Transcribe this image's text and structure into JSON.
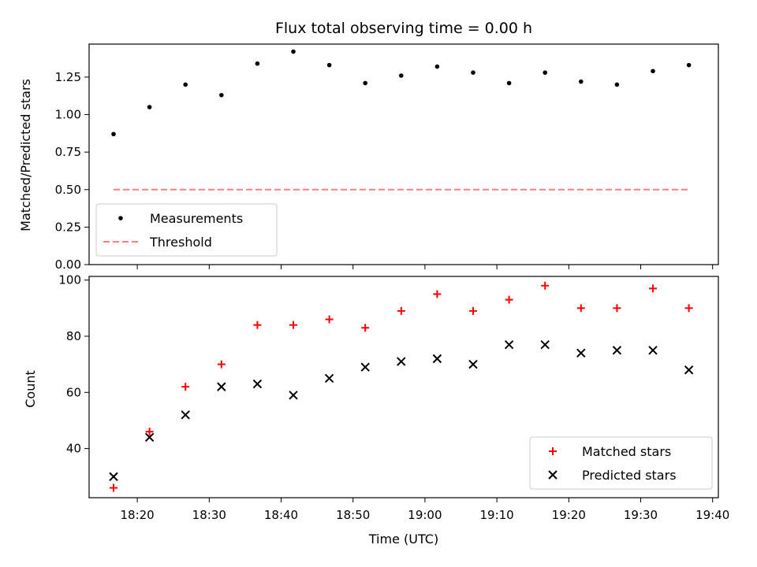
{
  "chart_data": [
    {
      "type": "scatter",
      "title": "Flux total observing time = 0.00 h",
      "xlabel": "",
      "ylabel": "Matched/Predicted stars",
      "xlim": [
        1093.3,
        1180.8
      ],
      "ylim": [
        0.0,
        1.47
      ],
      "yticks": [
        0.0,
        0.25,
        0.5,
        0.75,
        1.0,
        1.25
      ],
      "ytick_labels": [
        "0.00",
        "0.25",
        "0.50",
        "0.75",
        "1.00",
        "1.25"
      ],
      "x": [
        1096.7,
        1101.7,
        1106.7,
        1111.7,
        1116.7,
        1121.7,
        1126.7,
        1131.7,
        1136.7,
        1141.7,
        1146.7,
        1151.7,
        1156.7,
        1161.7,
        1166.7,
        1171.7,
        1176.7
      ],
      "series": [
        {
          "name": "Measurements",
          "marker": "dot",
          "color": "#000000",
          "values": [
            0.87,
            1.05,
            1.2,
            1.13,
            1.34,
            1.42,
            1.33,
            1.21,
            1.26,
            1.32,
            1.28,
            1.21,
            1.28,
            1.22,
            1.2,
            1.29,
            1.33
          ]
        },
        {
          "name": "Threshold",
          "marker": "dashed-line",
          "color": "#ff7f7f",
          "x_range": [
            1096.7,
            1176.7
          ],
          "value": 0.5
        }
      ],
      "legend": "lower-left"
    },
    {
      "type": "scatter",
      "title": "",
      "xlabel": "Time (UTC)",
      "ylabel": "Count",
      "xlim": [
        1093.3,
        1180.8
      ],
      "ylim": [
        22.5,
        101.3
      ],
      "yticks": [
        40,
        60,
        80,
        100
      ],
      "ytick_labels": [
        "40",
        "60",
        "80",
        "100"
      ],
      "xticks": [
        1100,
        1110,
        1120,
        1130,
        1140,
        1150,
        1160,
        1170,
        1180
      ],
      "xtick_labels": [
        "18:20",
        "18:30",
        "18:40",
        "18:50",
        "19:00",
        "19:10",
        "19:20",
        "19:30",
        "19:40"
      ],
      "x": [
        1096.7,
        1101.7,
        1106.7,
        1111.7,
        1116.7,
        1121.7,
        1126.7,
        1131.7,
        1136.7,
        1141.7,
        1146.7,
        1151.7,
        1156.7,
        1161.7,
        1166.7,
        1171.7,
        1176.7
      ],
      "series": [
        {
          "name": "Matched stars",
          "marker": "plus",
          "color": "#ff0000",
          "values": [
            26,
            46,
            62,
            70,
            84,
            84,
            86,
            83,
            89,
            95,
            89,
            93,
            98,
            90,
            90,
            97,
            90
          ]
        },
        {
          "name": "Predicted stars",
          "marker": "x",
          "color": "#000000",
          "values": [
            30,
            44,
            52,
            62,
            63,
            59,
            65,
            69,
            71,
            72,
            70,
            77,
            77,
            74,
            75,
            75,
            68
          ]
        }
      ],
      "legend": "lower-right"
    }
  ]
}
